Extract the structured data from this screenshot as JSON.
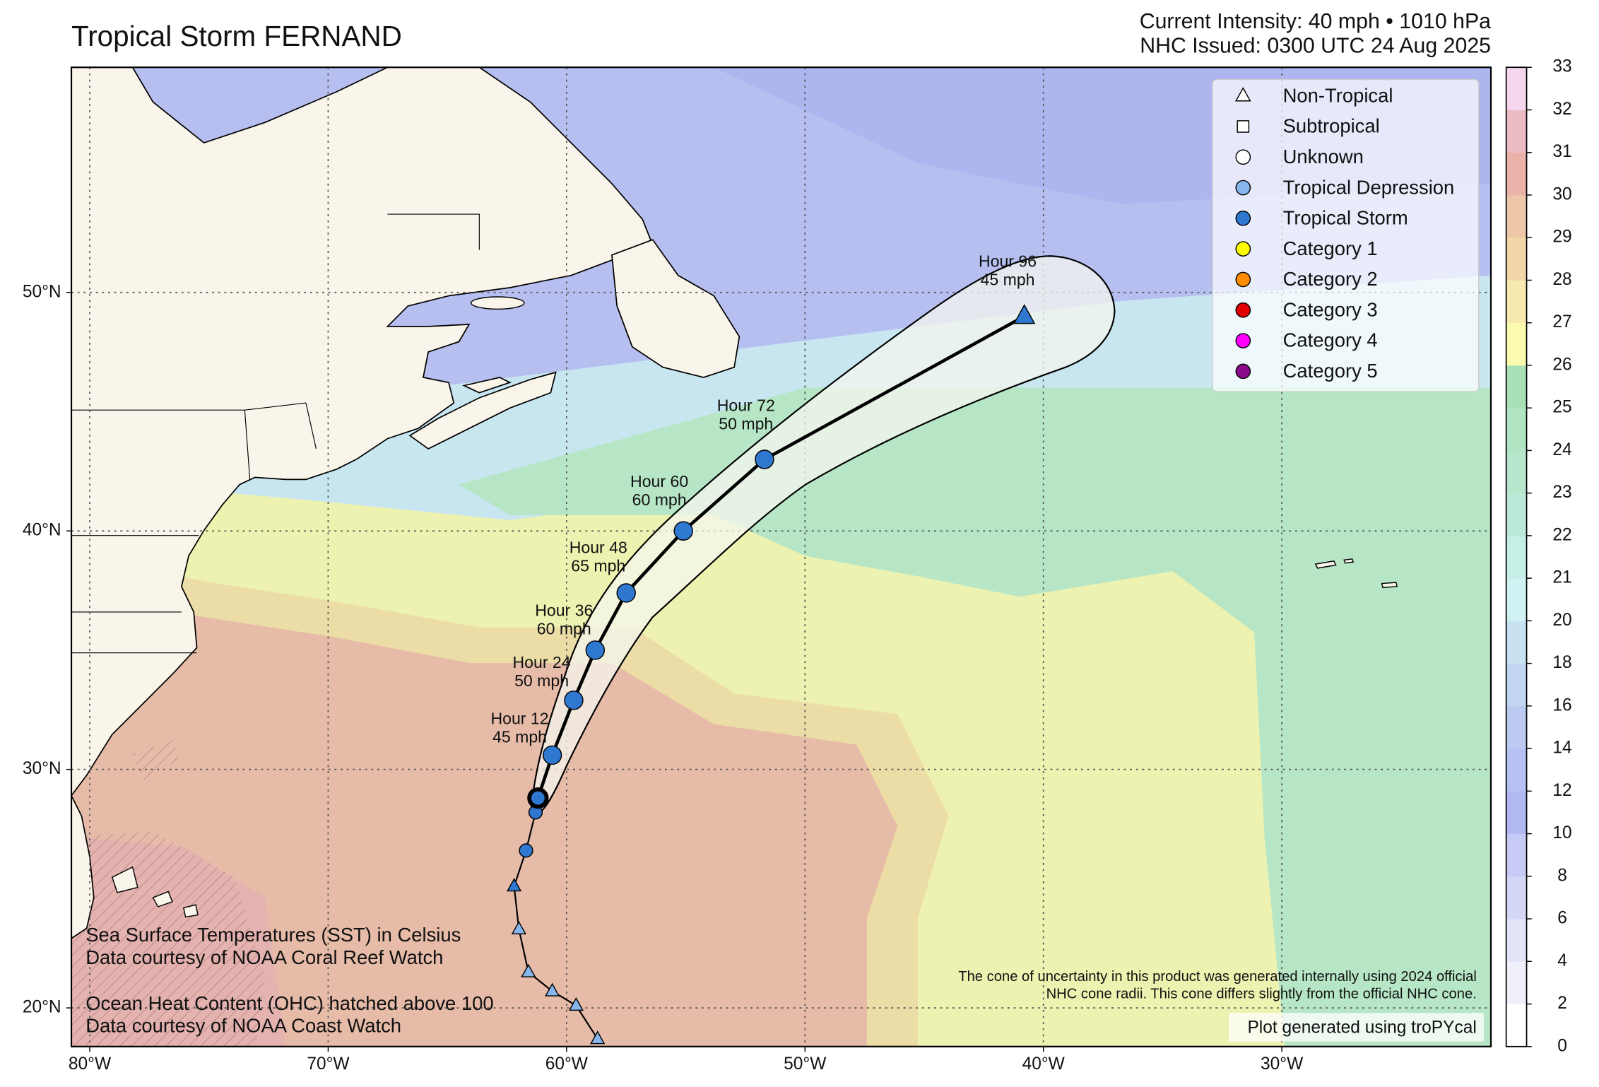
{
  "header": {
    "title": "Tropical Storm FERNAND",
    "intensity": "Current Intensity: 40 mph • 1010 hPa",
    "issued": "NHC Issued: 0300 UTC 24 Aug 2025"
  },
  "map": {
    "xlim": [
      -80.77,
      -21.23
    ],
    "ylim": [
      18.38,
      59.44
    ],
    "xticks": [
      {
        "value": -80,
        "label": "80°W"
      },
      {
        "value": -70,
        "label": "70°W"
      },
      {
        "value": -60,
        "label": "60°W"
      },
      {
        "value": -50,
        "label": "50°W"
      },
      {
        "value": -40,
        "label": "40°W"
      },
      {
        "value": -30,
        "label": "30°W"
      }
    ],
    "yticks": [
      {
        "value": 20,
        "label": "20°N"
      },
      {
        "value": 30,
        "label": "30°N"
      },
      {
        "value": 40,
        "label": "40°N"
      },
      {
        "value": 50,
        "label": "50°N"
      }
    ],
    "grid": true,
    "forecast": {
      "hours": [
        null,
        "Hour 12",
        "Hour 24",
        "Hour 36",
        "Hour 48",
        "Hour 60",
        "Hour 72",
        "Hour 96"
      ],
      "winds": [
        null,
        "45 mph",
        "50 mph",
        "60 mph",
        "65 mph",
        "60 mph",
        "50 mph",
        "45 mph"
      ],
      "lon": [
        -61.2,
        -60.6,
        -59.7,
        -58.8,
        -57.5,
        -55.1,
        -51.7,
        -40.8
      ],
      "lat": [
        28.8,
        30.6,
        32.9,
        35.0,
        37.4,
        40.0,
        43.0,
        49.0
      ],
      "markers": [
        "current",
        "circle",
        "circle",
        "circle",
        "circle",
        "circle",
        "circle",
        "triangle"
      ],
      "color": "#2f78d0"
    },
    "past_track": {
      "lon": [
        -58.7,
        -59.6,
        -60.6,
        -61.6,
        -62.0,
        -62.2,
        -61.7,
        -61.3
      ],
      "lat": [
        18.7,
        20.1,
        20.7,
        21.5,
        23.3,
        25.1,
        26.6,
        28.2
      ],
      "markers": [
        "triangle",
        "triangle",
        "triangle",
        "triangle",
        "triangle",
        "triangle",
        "circle",
        "circle"
      ],
      "colors": [
        "#86b6ec",
        "#86b6ec",
        "#86b6ec",
        "#86b6ec",
        "#86b6ec",
        "#2f78d0",
        "#2f78d0",
        "#2f78d0"
      ]
    }
  },
  "colorbar": {
    "ticks": [
      0,
      2,
      4,
      6,
      8,
      10,
      12,
      14,
      16,
      18,
      20,
      21,
      22,
      23,
      24,
      25,
      26,
      27,
      28,
      29,
      30,
      31,
      32,
      33
    ],
    "colors": [
      "#ffffff",
      "#f0f0fa",
      "#e2e4f8",
      "#d4d8f6",
      "#c6caf4",
      "#b2b8f0",
      "#b8c2f2",
      "#bccaf2",
      "#c2d6f2",
      "#c8e2f2",
      "#d0f2f2",
      "#c4eee6",
      "#bcead8",
      "#b6e6cc",
      "#b0e4c2",
      "#a8e0b8",
      "#fbfbb0",
      "#f6eaae",
      "#f2d8a8",
      "#eec6a8",
      "#eab2a8",
      "#ecbcc4",
      "#f4d6ee"
    ]
  },
  "legend": {
    "position": "upper right",
    "entries": [
      {
        "label": "Non-Tropical",
        "marker": "triangle",
        "color": "#ffffff"
      },
      {
        "label": "Subtropical",
        "marker": "square",
        "color": "#ffffff"
      },
      {
        "label": "Unknown",
        "marker": "circle",
        "color": "#ffffff"
      },
      {
        "label": "Tropical Depression",
        "marker": "circle",
        "color": "#86b6ec"
      },
      {
        "label": "Tropical Storm",
        "marker": "circle",
        "color": "#2f78d0"
      },
      {
        "label": "Category 1",
        "marker": "circle",
        "color": "#ffff00"
      },
      {
        "label": "Category 2",
        "marker": "circle",
        "color": "#ff8c00"
      },
      {
        "label": "Category 3",
        "marker": "circle",
        "color": "#e00000"
      },
      {
        "label": "Category 4",
        "marker": "circle",
        "color": "#ff00ff"
      },
      {
        "label": "Category 5",
        "marker": "circle",
        "color": "#8b0a8b"
      }
    ]
  },
  "notes": {
    "sst": [
      "Sea Surface Temperatures (SST) in Celsius",
      "Data courtesy of NOAA Coral Reef Watch"
    ],
    "ohc": [
      "Ocean Heat Content (OHC) hatched above 100",
      "Data courtesy of NOAA Coast Watch"
    ],
    "cone": [
      "The cone of uncertainty in this product was generated internally using 2024 official",
      "NHC cone radii. This cone differs slightly from the official NHC cone."
    ],
    "credit": "Plot generated using troPYcal"
  }
}
